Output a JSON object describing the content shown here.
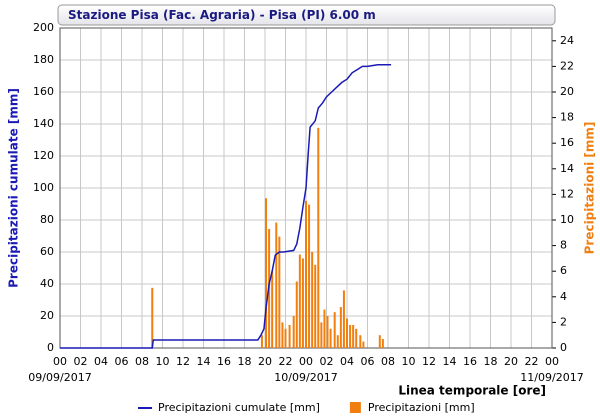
{
  "chart_data": {
    "type": "combo",
    "title": "Stazione Pisa (Fac. Agraria) - Pisa (PI) 6.00 m",
    "y_label": "Precipitazioni cumulate [mm]",
    "y2_label": "Precipitazioni [mm]",
    "x_label": "Linea temporale [ore]",
    "grid": true,
    "xlim": [
      0,
      48
    ],
    "ylim": [
      0,
      200
    ],
    "y2lim": [
      0,
      25
    ],
    "yticks": [
      0,
      20,
      40,
      60,
      80,
      100,
      120,
      140,
      160,
      180,
      200
    ],
    "y2ticks": [
      0,
      2,
      4,
      6,
      8,
      10,
      12,
      14,
      16,
      18,
      20,
      22,
      24
    ],
    "xticks": [
      {
        "value": 0,
        "label": "00"
      },
      {
        "value": 2,
        "label": "02"
      },
      {
        "value": 4,
        "label": "04"
      },
      {
        "value": 6,
        "label": "06"
      },
      {
        "value": 8,
        "label": "08"
      },
      {
        "value": 10,
        "label": "10"
      },
      {
        "value": 12,
        "label": "12"
      },
      {
        "value": 14,
        "label": "14"
      },
      {
        "value": 16,
        "label": "16"
      },
      {
        "value": 18,
        "label": "18"
      },
      {
        "value": 20,
        "label": "20"
      },
      {
        "value": 22,
        "label": "22"
      },
      {
        "value": 24,
        "label": "00"
      },
      {
        "value": 26,
        "label": "02"
      },
      {
        "value": 28,
        "label": "04"
      },
      {
        "value": 30,
        "label": "06"
      },
      {
        "value": 32,
        "label": "08"
      },
      {
        "value": 34,
        "label": "10"
      },
      {
        "value": 36,
        "label": "12"
      },
      {
        "value": 38,
        "label": "14"
      },
      {
        "value": 40,
        "label": "16"
      },
      {
        "value": 42,
        "label": "18"
      },
      {
        "value": 44,
        "label": "20"
      },
      {
        "value": 46,
        "label": "22"
      },
      {
        "value": 48,
        "label": "00"
      }
    ],
    "date_labels": [
      {
        "value": 0,
        "label": "09/09/2017"
      },
      {
        "value": 24,
        "label": "10/09/2017"
      },
      {
        "value": 48,
        "label": "11/09/2017"
      }
    ],
    "series": [
      {
        "name": "Precipitazioni cumulate [mm]",
        "type": "line",
        "color": "#1a1ab4",
        "x": [
          0,
          9.0,
          9.1,
          19.3,
          19.6,
          19.9,
          20.1,
          20.4,
          20.7,
          21.0,
          21.4,
          21.8,
          22.8,
          23.1,
          23.4,
          23.7,
          24.0,
          24.2,
          24.4,
          24.9,
          25.2,
          25.6,
          26.0,
          26.5,
          27.0,
          27.5,
          28.0,
          28.5,
          29.0,
          29.5,
          30.0,
          31.0,
          32.3
        ],
        "values": [
          0,
          0,
          5,
          5,
          8,
          12,
          25,
          40,
          48,
          58,
          60,
          60,
          61,
          65,
          75,
          88,
          100,
          120,
          138,
          142,
          150,
          153,
          157,
          160,
          163,
          166,
          168,
          172,
          174,
          176,
          176,
          177,
          177
        ]
      },
      {
        "name": "Precipitazioni [mm]",
        "type": "bar",
        "axis": "y2",
        "color": "#f07f10",
        "x": [
          9.0,
          19.7,
          20.1,
          20.4,
          20.7,
          21.1,
          21.4,
          21.7,
          22.0,
          22.4,
          22.8,
          23.1,
          23.4,
          23.7,
          24.0,
          24.3,
          24.6,
          24.9,
          25.2,
          25.5,
          25.8,
          26.1,
          26.4,
          26.8,
          27.1,
          27.4,
          27.7,
          28.0,
          28.3,
          28.6,
          28.9,
          29.3,
          29.6,
          31.2,
          31.5
        ],
        "values": [
          4.7,
          1.0,
          11.7,
          9.3,
          6.0,
          9.8,
          8.7,
          2.0,
          1.5,
          1.8,
          2.5,
          5.2,
          7.3,
          7.0,
          11.5,
          11.2,
          7.5,
          6.5,
          17.2,
          2.0,
          3.0,
          2.5,
          1.5,
          2.8,
          1.0,
          3.2,
          4.5,
          2.3,
          1.8,
          1.8,
          1.5,
          1.0,
          0.5,
          1.0,
          0.7
        ]
      }
    ]
  }
}
